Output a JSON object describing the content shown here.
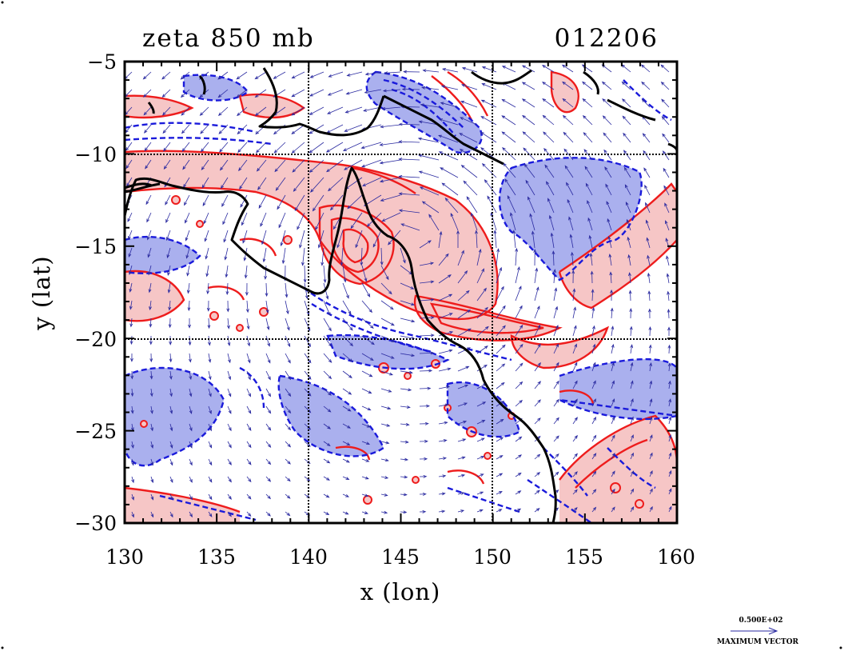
{
  "title": {
    "left": "zeta 850 mb",
    "right": "012206"
  },
  "axes": {
    "xlabel": "x (lon)",
    "ylabel": "y (lat)",
    "x_ticks": [
      "130",
      "135",
      "140",
      "145",
      "150",
      "155",
      "160"
    ],
    "y_ticks": [
      "−5",
      "−10",
      "−15",
      "−20",
      "−25",
      "−30"
    ]
  },
  "vector_key": {
    "magnitude_label": "0.500E+02",
    "caption": "MAXIMUM VECTOR"
  },
  "colors": {
    "positive_contour": "#ee1c1c",
    "positive_fill": "#f6c6c6",
    "negative_contour": "#1a1adb",
    "negative_fill": "#aab0ee",
    "vectors": "#2a2aa0",
    "coastline": "#000000",
    "grid": "#000000"
  },
  "chart_data": {
    "type": "contour",
    "field": "relative vorticity (zeta) at 850 mb with wind vectors",
    "xlim": [
      130,
      160
    ],
    "ylim": [
      -30,
      -5
    ],
    "grid_lines": {
      "x": [
        140,
        150
      ],
      "y": [
        -10,
        -20
      ]
    },
    "vector_max_magnitude": 50
  }
}
